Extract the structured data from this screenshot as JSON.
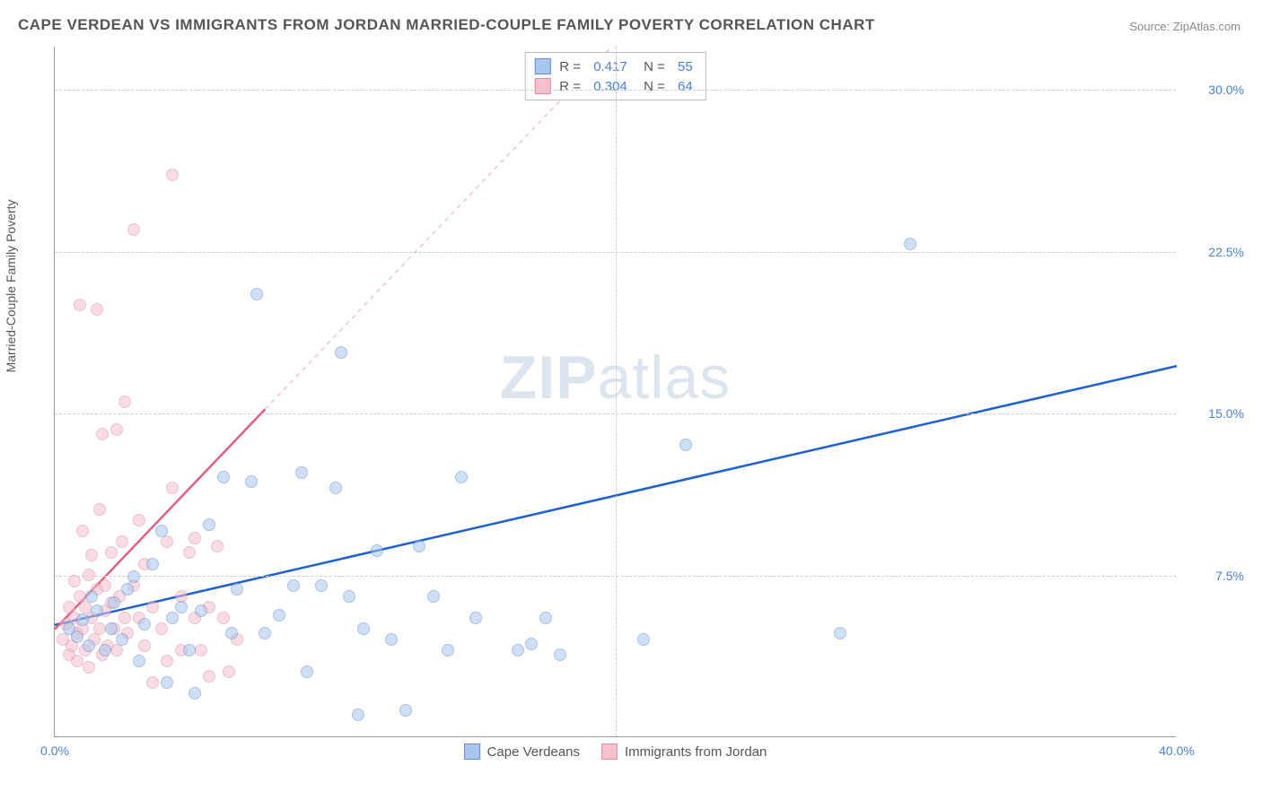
{
  "title": "CAPE VERDEAN VS IMMIGRANTS FROM JORDAN MARRIED-COUPLE FAMILY POVERTY CORRELATION CHART",
  "source": "Source: ZipAtlas.com",
  "y_axis_label": "Married-Couple Family Poverty",
  "watermark_bold": "ZIP",
  "watermark_light": "atlas",
  "chart": {
    "type": "scatter-correlation",
    "background_color": "#ffffff",
    "grid_color": "#cccccc",
    "axis_color": "#999999",
    "label_color": "#555555",
    "value_color": "#4a80d6",
    "xlim": [
      0,
      40
    ],
    "ylim": [
      0,
      32
    ],
    "x_ticks": [
      {
        "pos": 0.0,
        "label": "0.0%"
      },
      {
        "pos": 40.0,
        "label": "40.0%"
      }
    ],
    "y_ticks": [
      {
        "pos": 7.5,
        "label": "7.5%"
      },
      {
        "pos": 15.0,
        "label": "15.0%"
      },
      {
        "pos": 22.5,
        "label": "22.5%"
      },
      {
        "pos": 30.0,
        "label": "30.0%"
      }
    ],
    "x_gridlines": [
      20.0
    ],
    "marker_size": 14,
    "marker_opacity": 0.55,
    "series": [
      {
        "name": "Cape Verdeans",
        "fill": "#a9c6ec",
        "stroke": "#5f8fd6",
        "trend_color": "#1d5fd6",
        "trend_width": 2.5,
        "dash_color": "#a9c6ec",
        "R": "0.417",
        "N": "55",
        "trend": {
          "x1": 0,
          "y1": 5.2,
          "x2": 40,
          "y2": 17.2
        },
        "points": [
          [
            0.5,
            5.0
          ],
          [
            0.8,
            4.6
          ],
          [
            1.0,
            5.4
          ],
          [
            1.2,
            4.2
          ],
          [
            1.5,
            5.8
          ],
          [
            1.3,
            6.5
          ],
          [
            1.8,
            4.0
          ],
          [
            2.0,
            5.0
          ],
          [
            2.1,
            6.2
          ],
          [
            2.4,
            4.5
          ],
          [
            2.6,
            6.8
          ],
          [
            2.8,
            7.4
          ],
          [
            3.0,
            3.5
          ],
          [
            3.2,
            5.2
          ],
          [
            3.5,
            8.0
          ],
          [
            3.8,
            9.5
          ],
          [
            4.0,
            2.5
          ],
          [
            4.2,
            5.5
          ],
          [
            4.5,
            6.0
          ],
          [
            4.8,
            4.0
          ],
          [
            5.0,
            2.0
          ],
          [
            5.2,
            5.8
          ],
          [
            5.5,
            9.8
          ],
          [
            6.0,
            12.0
          ],
          [
            6.3,
            4.8
          ],
          [
            6.5,
            6.8
          ],
          [
            7.0,
            11.8
          ],
          [
            7.2,
            20.5
          ],
          [
            7.5,
            4.8
          ],
          [
            8.0,
            5.6
          ],
          [
            8.5,
            7.0
          ],
          [
            8.8,
            12.2
          ],
          [
            9.0,
            3.0
          ],
          [
            9.5,
            7.0
          ],
          [
            10.0,
            11.5
          ],
          [
            10.2,
            17.8
          ],
          [
            10.5,
            6.5
          ],
          [
            10.8,
            1.0
          ],
          [
            11.0,
            5.0
          ],
          [
            11.5,
            8.6
          ],
          [
            12.0,
            4.5
          ],
          [
            12.5,
            1.2
          ],
          [
            13.0,
            8.8
          ],
          [
            13.5,
            6.5
          ],
          [
            14.0,
            4.0
          ],
          [
            14.5,
            12.0
          ],
          [
            15.0,
            5.5
          ],
          [
            16.5,
            4.0
          ],
          [
            17.0,
            4.3
          ],
          [
            17.5,
            5.5
          ],
          [
            18.0,
            3.8
          ],
          [
            21.0,
            4.5
          ],
          [
            22.5,
            13.5
          ],
          [
            28.0,
            4.8
          ],
          [
            30.5,
            22.8
          ]
        ]
      },
      {
        "name": "Immigrants from Jordan",
        "fill": "#f4c1cd",
        "stroke": "#e88aa2",
        "trend_color": "#e35f82",
        "trend_width": 2.5,
        "dash_color": "#f4c1cd",
        "R": "0.304",
        "N": "64",
        "trend": {
          "x1": 0,
          "y1": 5.0,
          "x2": 7.5,
          "y2": 15.2
        },
        "points": [
          [
            0.3,
            4.5
          ],
          [
            0.4,
            5.2
          ],
          [
            0.5,
            3.8
          ],
          [
            0.5,
            6.0
          ],
          [
            0.6,
            4.2
          ],
          [
            0.7,
            5.5
          ],
          [
            0.7,
            7.2
          ],
          [
            0.8,
            3.5
          ],
          [
            0.8,
            4.8
          ],
          [
            0.9,
            6.5
          ],
          [
            0.9,
            20.0
          ],
          [
            1.0,
            5.0
          ],
          [
            1.0,
            9.5
          ],
          [
            1.1,
            4.0
          ],
          [
            1.1,
            6.0
          ],
          [
            1.2,
            7.5
          ],
          [
            1.2,
            3.2
          ],
          [
            1.3,
            5.5
          ],
          [
            1.3,
            8.4
          ],
          [
            1.4,
            4.5
          ],
          [
            1.5,
            6.8
          ],
          [
            1.5,
            19.8
          ],
          [
            1.6,
            5.0
          ],
          [
            1.6,
            10.5
          ],
          [
            1.7,
            3.8
          ],
          [
            1.7,
            14.0
          ],
          [
            1.8,
            5.8
          ],
          [
            1.8,
            7.0
          ],
          [
            1.9,
            4.2
          ],
          [
            2.0,
            6.2
          ],
          [
            2.0,
            8.5
          ],
          [
            2.1,
            5.0
          ],
          [
            2.2,
            14.2
          ],
          [
            2.2,
            4.0
          ],
          [
            2.3,
            6.5
          ],
          [
            2.4,
            9.0
          ],
          [
            2.5,
            5.5
          ],
          [
            2.5,
            15.5
          ],
          [
            2.6,
            4.8
          ],
          [
            2.8,
            23.5
          ],
          [
            2.8,
            7.0
          ],
          [
            3.0,
            5.5
          ],
          [
            3.0,
            10.0
          ],
          [
            3.2,
            4.2
          ],
          [
            3.2,
            8.0
          ],
          [
            3.5,
            6.0
          ],
          [
            3.5,
            2.5
          ],
          [
            3.8,
            5.0
          ],
          [
            4.0,
            9.0
          ],
          [
            4.0,
            3.5
          ],
          [
            4.2,
            11.5
          ],
          [
            4.2,
            26.0
          ],
          [
            4.5,
            6.5
          ],
          [
            4.5,
            4.0
          ],
          [
            4.8,
            8.5
          ],
          [
            5.0,
            5.5
          ],
          [
            5.0,
            9.2
          ],
          [
            5.2,
            4.0
          ],
          [
            5.5,
            6.0
          ],
          [
            5.5,
            2.8
          ],
          [
            5.8,
            8.8
          ],
          [
            6.0,
            5.5
          ],
          [
            6.2,
            3.0
          ],
          [
            6.5,
            4.5
          ]
        ]
      }
    ]
  },
  "legend_bottom": [
    {
      "label": "Cape Verdeans",
      "fill": "#a9c6ec",
      "stroke": "#5f8fd6"
    },
    {
      "label": "Immigrants from Jordan",
      "fill": "#f4c1cd",
      "stroke": "#e88aa2"
    }
  ]
}
